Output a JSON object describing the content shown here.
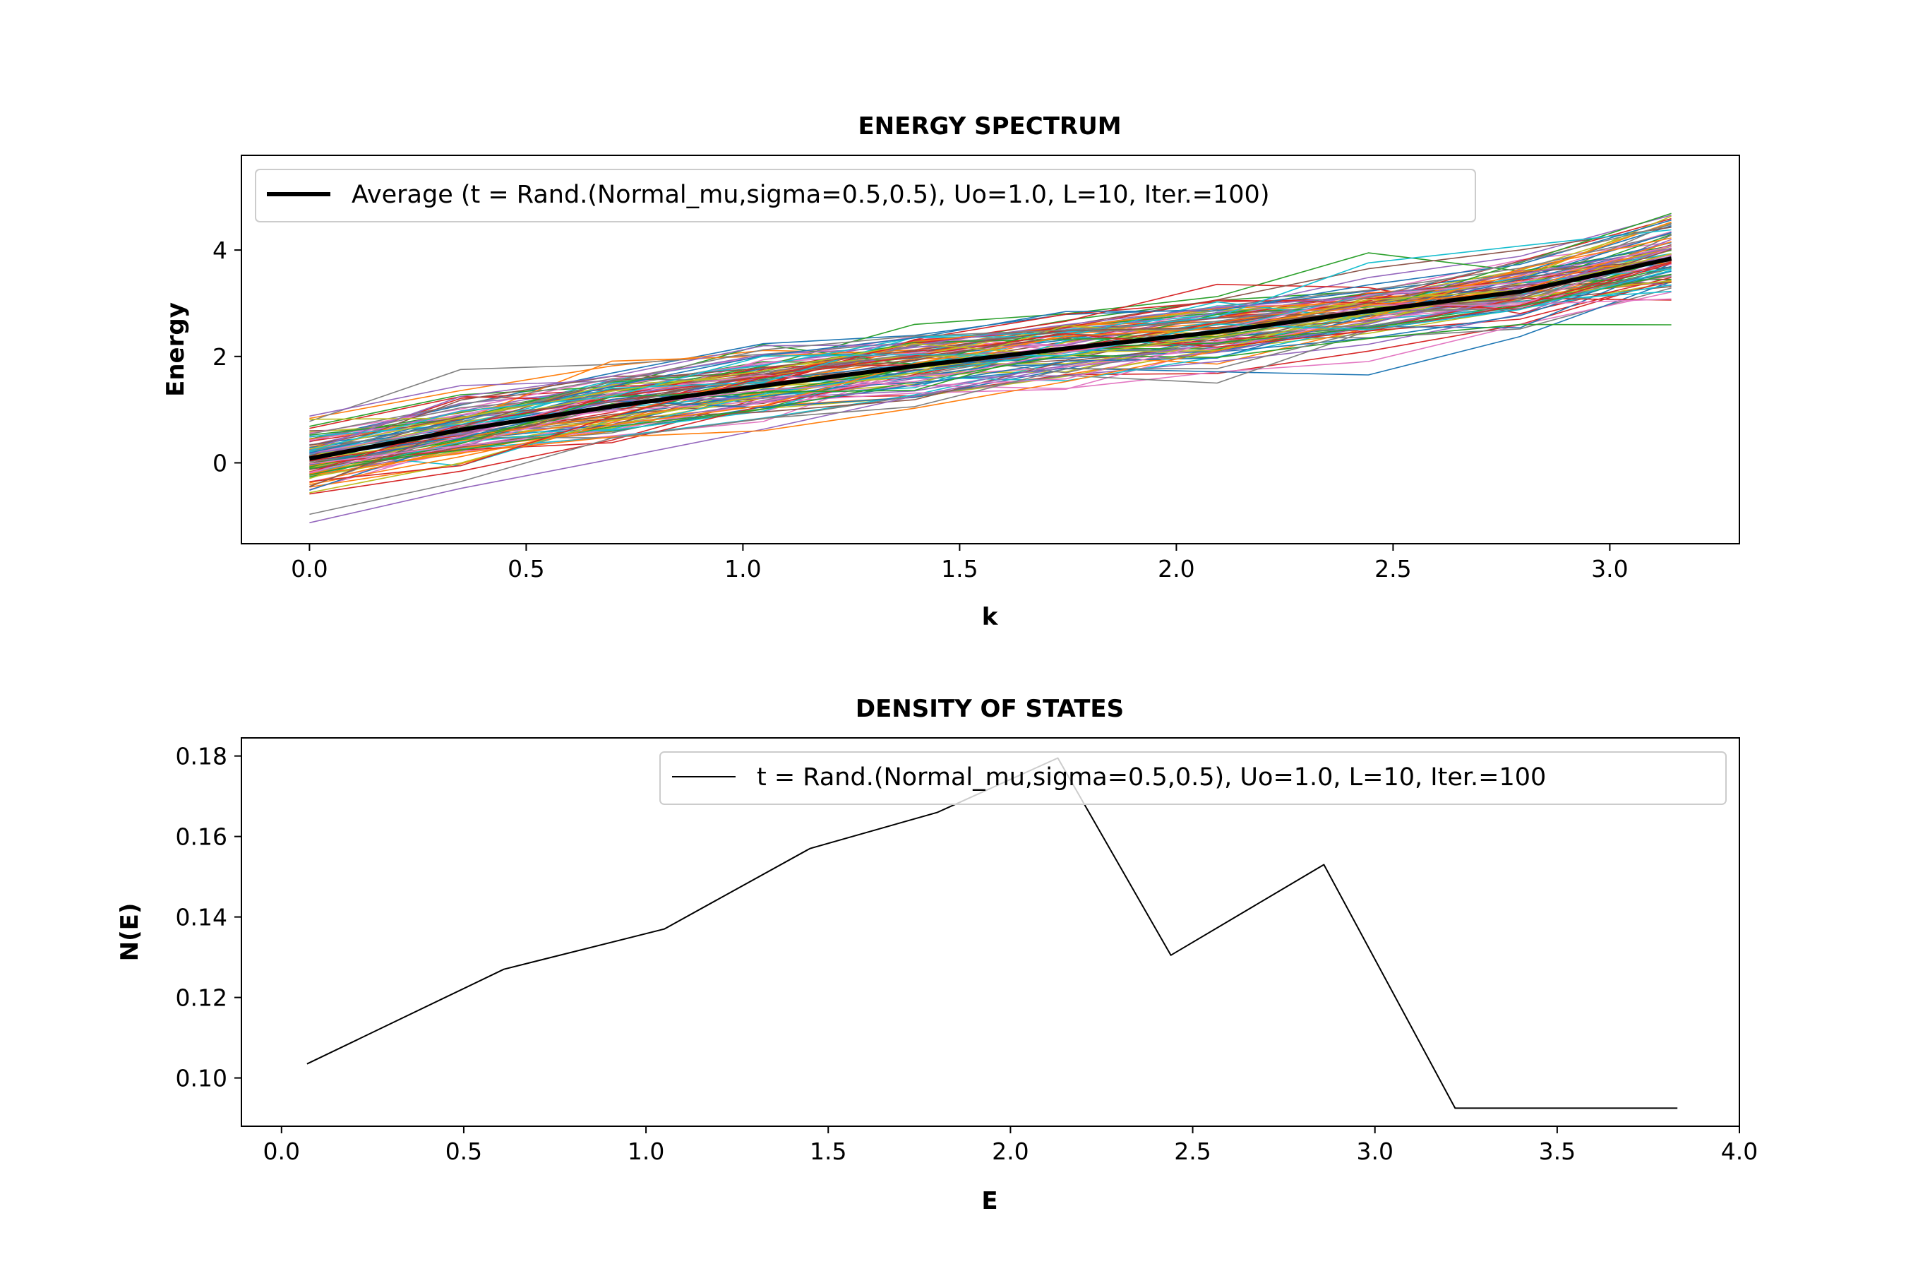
{
  "chart_data": [
    {
      "type": "line",
      "title": "ENERGY SPECTRUM",
      "xlabel": "k",
      "ylabel": "Energy",
      "xlim": [
        -0.157,
        3.299
      ],
      "ylim": [
        -1.52,
        5.78
      ],
      "xticks": [
        {
          "value": 0.0,
          "label": "0.0"
        },
        {
          "value": 0.5,
          "label": "0.5"
        },
        {
          "value": 1.0,
          "label": "1.0"
        },
        {
          "value": 1.5,
          "label": "1.5"
        },
        {
          "value": 2.0,
          "label": "2.0"
        },
        {
          "value": 2.5,
          "label": "2.5"
        },
        {
          "value": 3.0,
          "label": "3.0"
        }
      ],
      "yticks": [
        {
          "value": 0,
          "label": "0"
        },
        {
          "value": 2,
          "label": "2"
        },
        {
          "value": 4,
          "label": "4"
        }
      ],
      "grid": false,
      "legend": "top-left",
      "k": [
        0.0,
        0.349,
        0.698,
        1.047,
        1.396,
        1.745,
        2.094,
        2.443,
        2.793,
        3.142
      ],
      "series": [
        {
          "name": "Average (t = Rand.(Normal_mu,sigma=0.5,0.5), Uo=1.0, L=10, Iter.=100)",
          "color": "#000000",
          "values": [
            0.08,
            0.62,
            1.06,
            1.45,
            1.82,
            2.15,
            2.46,
            2.85,
            3.22,
            3.84
          ]
        }
      ],
      "realizations": {
        "count": 100,
        "colors": [
          "#1f77b4",
          "#ff7f0e",
          "#2ca02c",
          "#d62728",
          "#9467bd",
          "#8c564b",
          "#e377c2",
          "#7f7f7f",
          "#bcbd22",
          "#17becf"
        ]
      }
    },
    {
      "type": "line",
      "title": "DENSITY OF STATES",
      "xlabel": "E",
      "ylabel": "N(E)",
      "xlim": [
        -0.11,
        4.0
      ],
      "ylim": [
        0.088,
        0.1845
      ],
      "xticks": [
        {
          "value": 0.0,
          "label": "0.0"
        },
        {
          "value": 0.5,
          "label": "0.5"
        },
        {
          "value": 1.0,
          "label": "1.0"
        },
        {
          "value": 1.5,
          "label": "1.5"
        },
        {
          "value": 2.0,
          "label": "2.0"
        },
        {
          "value": 2.5,
          "label": "2.5"
        },
        {
          "value": 3.0,
          "label": "3.0"
        },
        {
          "value": 3.5,
          "label": "3.5"
        },
        {
          "value": 4.0,
          "label": "4.0"
        }
      ],
      "yticks": [
        {
          "value": 0.1,
          "label": "0.10"
        },
        {
          "value": 0.12,
          "label": "0.12"
        },
        {
          "value": 0.14,
          "label": "0.14"
        },
        {
          "value": 0.16,
          "label": "0.16"
        },
        {
          "value": 0.18,
          "label": "0.18"
        }
      ],
      "grid": false,
      "legend": "top-right",
      "series": [
        {
          "name": "t = Rand.(Normal_mu,sigma=0.5,0.5), Uo=1.0, L=10, Iter.=100",
          "color": "#000000",
          "x": [
            0.07,
            0.61,
            1.05,
            1.45,
            1.8,
            2.13,
            2.44,
            2.86,
            3.22,
            3.83
          ],
          "y": [
            0.1035,
            0.127,
            0.137,
            0.157,
            0.166,
            0.1795,
            0.1305,
            0.153,
            0.0925,
            0.0925
          ]
        }
      ]
    }
  ]
}
